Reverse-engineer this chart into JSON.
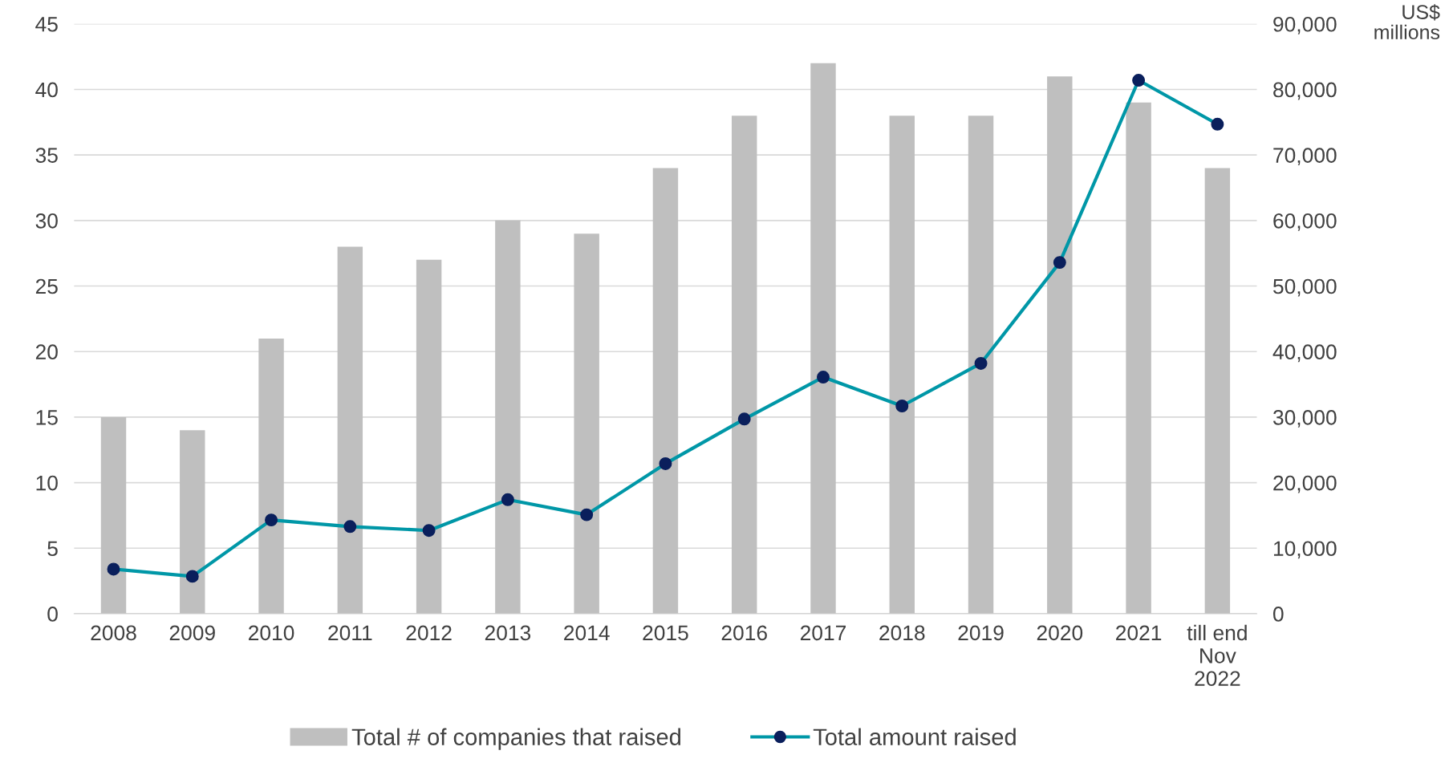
{
  "chart_data": {
    "type": "bar",
    "categories": [
      "2008",
      "2009",
      "2010",
      "2011",
      "2012",
      "2013",
      "2014",
      "2015",
      "2016",
      "2017",
      "2018",
      "2019",
      "2020",
      "2021",
      "till end\nNov\n2022"
    ],
    "series": [
      {
        "name": "Total # of companies that raised",
        "color": "#bfbfbf",
        "values": [
          15,
          14,
          21,
          28,
          27,
          30,
          29,
          34,
          38,
          42,
          38,
          38,
          41,
          39,
          34
        ]
      },
      {
        "name": "Total amount raised",
        "type": "line",
        "axis": "y2",
        "color": "#0097a7",
        "colors": [
          "#0a1f5c",
          "#0a1f5c",
          "#0a1f5c",
          "#0a1f5c",
          "#0a1f5c",
          "#0a1f5c",
          "#0a1f5c",
          "#0a1f5c",
          "#0a1f5c",
          "#0a1f5c",
          "#0a1f5c",
          "#0a1f5c",
          "#0a1f5c",
          "#0a1f5c",
          "#0a1f5c"
        ],
        "values": [
          6800,
          5700,
          14300,
          13300,
          12700,
          17400,
          15100,
          22900,
          29700,
          36100,
          31700,
          38200,
          53600,
          81400,
          74700
        ]
      }
    ],
    "y2label": "US$\nmillions",
    "ylim": [
      0,
      45
    ],
    "yticks": [
      0,
      5,
      10,
      15,
      20,
      25,
      30,
      35,
      40,
      45
    ],
    "y2lim": [
      0,
      90000
    ],
    "y2ticks": [
      {
        "value": 0,
        "label": "0"
      },
      {
        "value": 10000,
        "label": "10,000"
      },
      {
        "value": 20000,
        "label": "20,000"
      },
      {
        "value": 30000,
        "label": "30,000"
      },
      {
        "value": 40000,
        "label": "40,000"
      },
      {
        "value": 50000,
        "label": "50,000"
      },
      {
        "value": 60000,
        "label": "60,000"
      },
      {
        "value": 70000,
        "label": "70,000"
      },
      {
        "value": 80000,
        "label": "80,000"
      },
      {
        "value": 90000,
        "label": "90,000"
      }
    ],
    "grid": "y",
    "legend": "bottom",
    "marker": "circle",
    "line_style": "solid"
  }
}
